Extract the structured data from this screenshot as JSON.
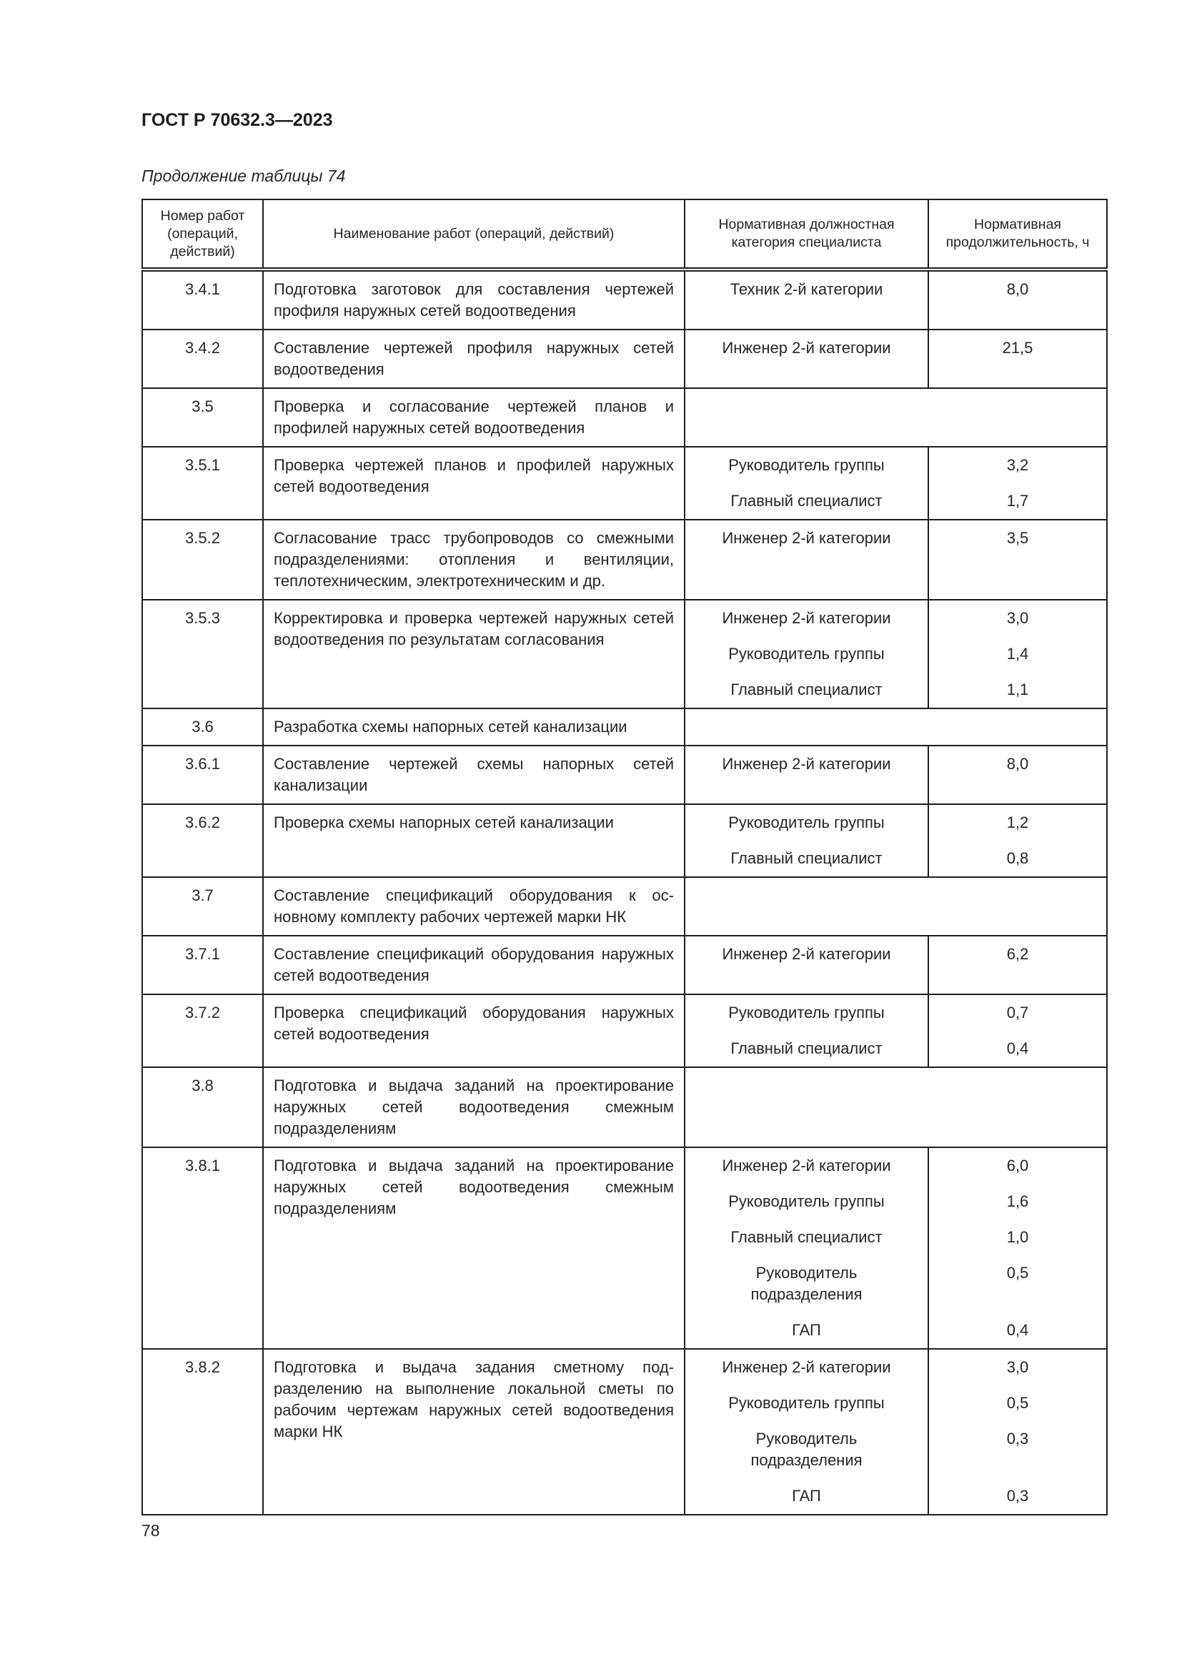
{
  "header": {
    "doc_title": "ГОСТ Р 70632.3—2023",
    "caption": "Продолжение таблицы 74"
  },
  "table": {
    "columns": [
      "Номер работ (операций, действий)",
      "Наименование работ (операций, действий)",
      "Нормативная должностная категория специалиста",
      "Нормативная продолжительность, ч"
    ],
    "rows": [
      {
        "num": "3.4.1",
        "name": "Подготовка заготовок для составления черте­жей профиля наружных сетей водоотведения",
        "staff": [
          {
            "role": "Техник 2-й категории",
            "hours": "8,0"
          }
        ]
      },
      {
        "num": "3.4.2",
        "name": "Составление чертежей профиля наружных се­тей водоотведения",
        "staff": [
          {
            "role": "Инженер 2-й категории",
            "hours": "21,5"
          }
        ]
      },
      {
        "num": "3.5",
        "name": "Проверка и согласование чертежей планов и профилей наружных сетей водоотведения",
        "staff": []
      },
      {
        "num": "3.5.1",
        "name": "Проверка чертежей планов и профилей наруж­ных сетей водоотведения",
        "staff": [
          {
            "role": "Руководитель группы",
            "hours": "3,2"
          },
          {
            "role": "Главный специалист",
            "hours": "1,7"
          }
        ]
      },
      {
        "num": "3.5.2",
        "name": "Согласование трасс трубопроводов со смежны­ми подразделениями: отопления и вентиляции, теплотехническим, электротехническим и др.",
        "staff": [
          {
            "role": "Инженер 2-й категории",
            "hours": "3,5"
          }
        ]
      },
      {
        "num": "3.5.3",
        "name": "Корректировка и проверка чертежей наружных сетей водоотведения по результатам согласо­вания",
        "staff": [
          {
            "role": "Инженер 2-й категории",
            "hours": "3,0"
          },
          {
            "role": "Руководитель группы",
            "hours": "1,4"
          },
          {
            "role": "Главный специалист",
            "hours": "1,1"
          }
        ]
      },
      {
        "num": "3.6",
        "name": "Разработка схемы напорных сетей канализации",
        "staff": []
      },
      {
        "num": "3.6.1",
        "name": "Составление чертежей схемы напорных сетей канализации",
        "staff": [
          {
            "role": "Инженер 2-й категории",
            "hours": "8,0"
          }
        ]
      },
      {
        "num": "3.6.2",
        "name": "Проверка схемы напорных сетей канализации",
        "staff": [
          {
            "role": "Руководитель группы",
            "hours": "1,2"
          },
          {
            "role": "Главный специалист",
            "hours": "0,8"
          }
        ]
      },
      {
        "num": "3.7",
        "name": "Составление спецификаций оборудования к ос­новному комплекту рабочих чертежей марки НК",
        "staff": []
      },
      {
        "num": "3.7.1",
        "name": "Составление спецификаций оборудования на­ружных сетей водоотведения",
        "staff": [
          {
            "role": "Инженер 2-й категории",
            "hours": "6,2"
          }
        ]
      },
      {
        "num": "3.7.2",
        "name": "Проверка спецификаций оборудования наруж­ных сетей водоотведения",
        "staff": [
          {
            "role": "Руководитель группы",
            "hours": "0,7"
          },
          {
            "role": "Главный специалист",
            "hours": "0,4"
          }
        ]
      },
      {
        "num": "3.8",
        "name": "Подготовка и выдача заданий на проектирова­ние наружных сетей водоотведения смежным подразделениям",
        "staff": []
      },
      {
        "num": "3.8.1",
        "name": "Подготовка и выдача заданий на проектирова­ние наружных сетей водоотведения смежным подразделениям",
        "staff": [
          {
            "role": "Инженер 2-й категории",
            "hours": "6,0"
          },
          {
            "role": "Руководитель группы",
            "hours": "1,6"
          },
          {
            "role": "Главный специалист",
            "hours": "1,0"
          },
          {
            "role": "Руководитель подразделения",
            "hours": "0,5"
          },
          {
            "role": "ГАП",
            "hours": "0,4"
          }
        ]
      },
      {
        "num": "3.8.2",
        "name": "Подготовка и выдача задания сметному под­разделению на выполнение локальной сметы по рабочим чертежам наружных сетей водоот­ведения марки НК",
        "staff": [
          {
            "role": "Инженер 2-й категории",
            "hours": "3,0"
          },
          {
            "role": "Руководитель группы",
            "hours": "0,5"
          },
          {
            "role": "Руководитель подразделения",
            "hours": "0,3"
          },
          {
            "role": "ГАП",
            "hours": "0,3"
          }
        ]
      }
    ]
  },
  "footer": {
    "page_number": "78"
  }
}
